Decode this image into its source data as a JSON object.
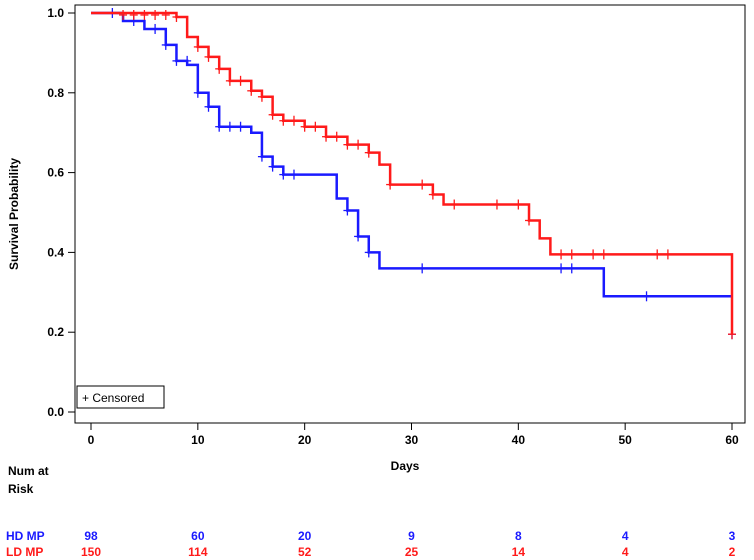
{
  "chart_data": {
    "type": "line",
    "subtype": "kaplan-meier",
    "title": "",
    "xlabel": "Days",
    "ylabel": "Survival Probability",
    "xlim": [
      0,
      60
    ],
    "ylim": [
      0.0,
      1.0
    ],
    "xticks": [
      "0",
      "10",
      "20",
      "30",
      "40",
      "50",
      "60"
    ],
    "yticks": [
      "0.0",
      "0.2",
      "0.4",
      "0.6",
      "0.8",
      "1.0"
    ],
    "legend": {
      "label": "+ Censored",
      "position": "bottom-left"
    },
    "series": [
      {
        "name": "HD MP",
        "color": "#1a1aff",
        "steps": [
          [
            0,
            1.0
          ],
          [
            3,
            0.98
          ],
          [
            5,
            0.96
          ],
          [
            7,
            0.92
          ],
          [
            8,
            0.88
          ],
          [
            9,
            0.87
          ],
          [
            10,
            0.8
          ],
          [
            11,
            0.765
          ],
          [
            12,
            0.715
          ],
          [
            15,
            0.7
          ],
          [
            16,
            0.64
          ],
          [
            17,
            0.615
          ],
          [
            18,
            0.595
          ],
          [
            23,
            0.535
          ],
          [
            24,
            0.505
          ],
          [
            25,
            0.44
          ],
          [
            26,
            0.4
          ],
          [
            27,
            0.36
          ],
          [
            48,
            0.29
          ],
          [
            60,
            0.29
          ]
        ],
        "censored": [
          [
            2,
            1.0
          ],
          [
            4,
            0.98
          ],
          [
            6,
            0.96
          ],
          [
            7,
            0.92
          ],
          [
            8,
            0.88
          ],
          [
            9,
            0.88
          ],
          [
            10,
            0.8
          ],
          [
            11,
            0.765
          ],
          [
            12,
            0.715
          ],
          [
            13,
            0.715
          ],
          [
            14,
            0.715
          ],
          [
            16,
            0.64
          ],
          [
            17,
            0.615
          ],
          [
            18,
            0.595
          ],
          [
            19,
            0.595
          ],
          [
            24,
            0.505
          ],
          [
            25,
            0.44
          ],
          [
            26,
            0.4
          ],
          [
            31,
            0.36
          ],
          [
            44,
            0.36
          ],
          [
            45,
            0.36
          ],
          [
            52,
            0.29
          ],
          [
            60,
            0.195
          ]
        ]
      },
      {
        "name": "LD MP",
        "color": "#ff1a1a",
        "steps": [
          [
            0,
            1.0
          ],
          [
            8,
            0.99
          ],
          [
            9,
            0.94
          ],
          [
            10,
            0.915
          ],
          [
            11,
            0.89
          ],
          [
            12,
            0.86
          ],
          [
            13,
            0.83
          ],
          [
            15,
            0.805
          ],
          [
            16,
            0.79
          ],
          [
            17,
            0.745
          ],
          [
            18,
            0.73
          ],
          [
            20,
            0.715
          ],
          [
            22,
            0.69
          ],
          [
            24,
            0.67
          ],
          [
            26,
            0.65
          ],
          [
            27,
            0.62
          ],
          [
            28,
            0.57
          ],
          [
            32,
            0.545
          ],
          [
            33,
            0.52
          ],
          [
            41,
            0.48
          ],
          [
            42,
            0.435
          ],
          [
            43,
            0.395
          ],
          [
            60,
            0.395
          ],
          [
            60,
            0.195
          ]
        ],
        "censored": [
          [
            3,
            0.995
          ],
          [
            4,
            0.995
          ],
          [
            5,
            0.995
          ],
          [
            6,
            0.995
          ],
          [
            7,
            0.995
          ],
          [
            8,
            0.99
          ],
          [
            10,
            0.915
          ],
          [
            11,
            0.89
          ],
          [
            12,
            0.86
          ],
          [
            13,
            0.83
          ],
          [
            14,
            0.83
          ],
          [
            15,
            0.805
          ],
          [
            16,
            0.79
          ],
          [
            17,
            0.745
          ],
          [
            18,
            0.73
          ],
          [
            19,
            0.73
          ],
          [
            20,
            0.715
          ],
          [
            21,
            0.715
          ],
          [
            22,
            0.69
          ],
          [
            23,
            0.69
          ],
          [
            24,
            0.67
          ],
          [
            25,
            0.67
          ],
          [
            26,
            0.65
          ],
          [
            28,
            0.57
          ],
          [
            31,
            0.57
          ],
          [
            32,
            0.545
          ],
          [
            34,
            0.52
          ],
          [
            38,
            0.52
          ],
          [
            40,
            0.52
          ],
          [
            41,
            0.48
          ],
          [
            44,
            0.395
          ],
          [
            45,
            0.395
          ],
          [
            47,
            0.395
          ],
          [
            48,
            0.395
          ],
          [
            53,
            0.395
          ],
          [
            54,
            0.395
          ],
          [
            60,
            0.195
          ]
        ]
      }
    ]
  },
  "risk_table": {
    "header_line1": "Num at",
    "header_line2": "Risk",
    "days": [
      0,
      10,
      20,
      30,
      40,
      50,
      60
    ],
    "rows": [
      {
        "label": "HD MP",
        "color": "#1a1aff",
        "values": [
          "98",
          "60",
          "20",
          "9",
          "8",
          "4",
          "3"
        ]
      },
      {
        "label": "LD MP",
        "color": "#ff1a1a",
        "values": [
          "150",
          "114",
          "52",
          "25",
          "14",
          "4",
          "2"
        ]
      }
    ]
  }
}
